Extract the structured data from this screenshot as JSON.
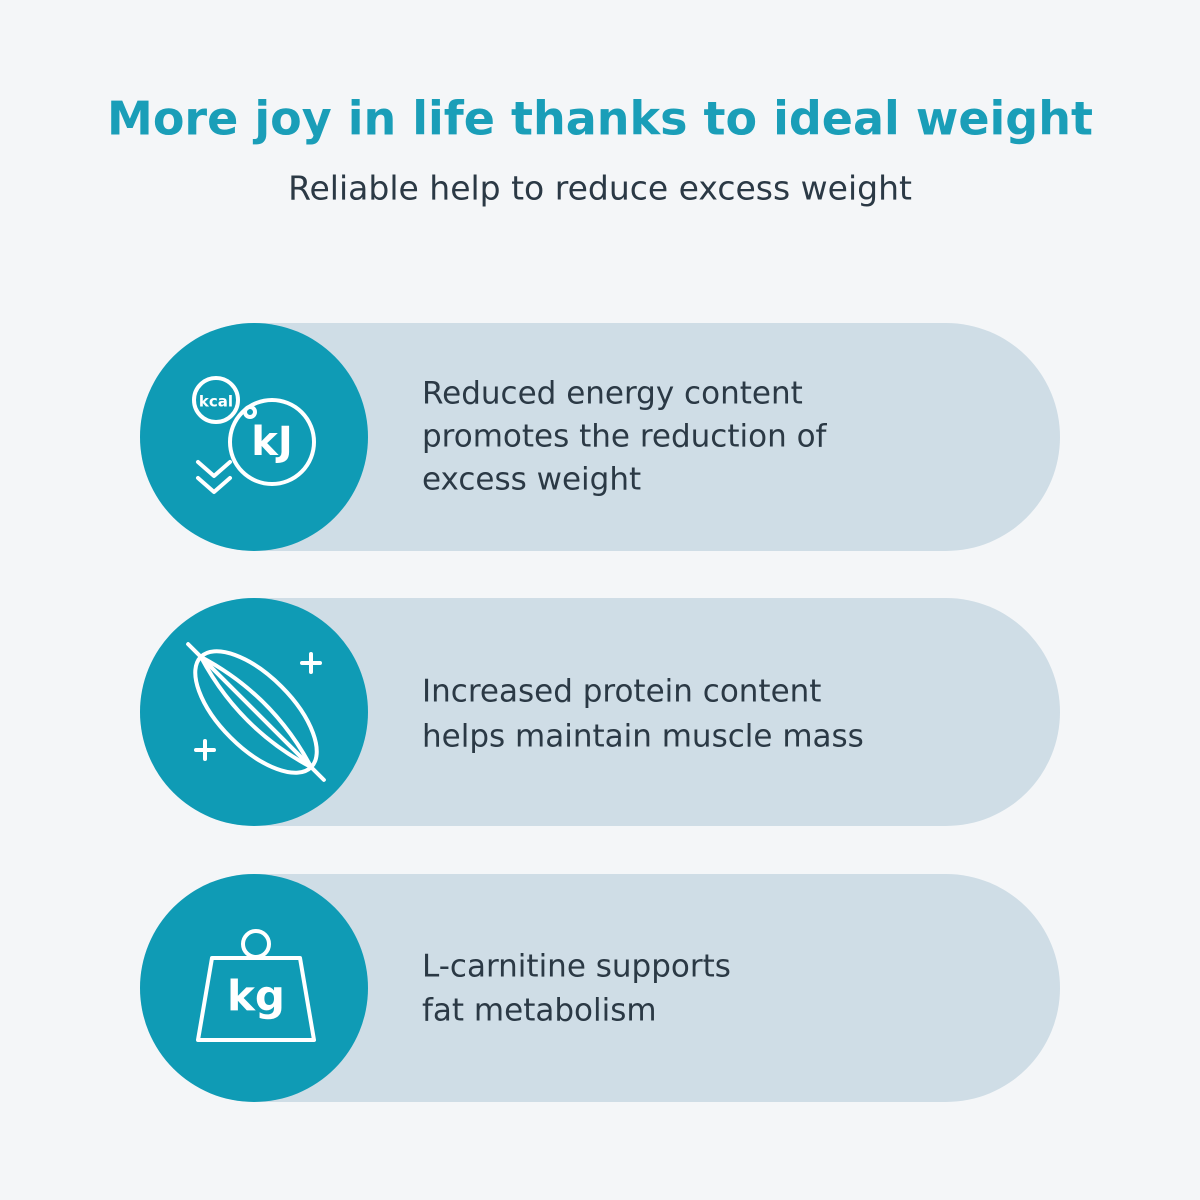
{
  "header": {
    "title": "More joy in life thanks to ideal weight",
    "subtitle": "Reliable help to reduce excess weight"
  },
  "items": [
    {
      "icon_labels": [
        "kcal",
        "kJ"
      ],
      "lines": [
        "Reduced energy content",
        "promotes the reduction of",
        "excess weight"
      ]
    },
    {
      "icon_labels": [],
      "lines": [
        "Increased protein content",
        "helps maintain muscle mass"
      ]
    },
    {
      "icon_labels": [
        "kg"
      ],
      "lines": [
        "L-carnitine supports",
        "fat metabolism"
      ]
    }
  ]
}
